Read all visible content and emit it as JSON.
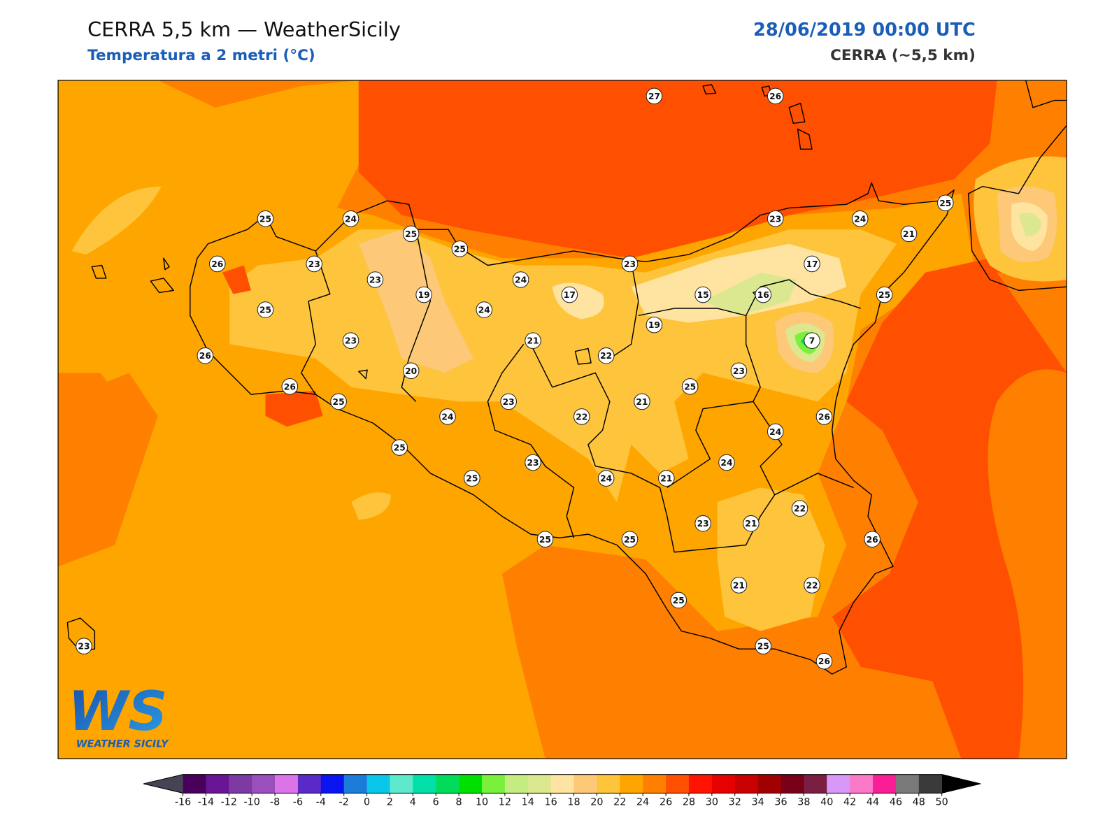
{
  "header": {
    "title": "CERRA 5,5 km — WeatherSicily",
    "subtitle": "Temperatura a 2 metri (°C)",
    "datetime": "28/06/2019 00:00 UTC",
    "model": "CERRA (~5,5 km)"
  },
  "logo": {
    "mark": "WS",
    "name": "WEATHER SICILY"
  },
  "stations": [
    27,
    26,
    25,
    24,
    25,
    25,
    26,
    23,
    23,
    19,
    24,
    24,
    17,
    23,
    15,
    16,
    23,
    24,
    25,
    21,
    17,
    25,
    25,
    23,
    21,
    22,
    19,
    7,
    26,
    26,
    20,
    25,
    24,
    23,
    22,
    21,
    25,
    23,
    26,
    24,
    25,
    23,
    24,
    21,
    24,
    25,
    22,
    23,
    21,
    25,
    25,
    26,
    21,
    22,
    25,
    25,
    26,
    23
  ],
  "colorbar": {
    "ticks": [
      -16,
      -14,
      -12,
      -10,
      -8,
      -6,
      -4,
      -2,
      0,
      2,
      4,
      6,
      8,
      10,
      12,
      14,
      16,
      18,
      20,
      22,
      24,
      26,
      28,
      30,
      32,
      34,
      36,
      38,
      40,
      42,
      44,
      46,
      48,
      50
    ],
    "colors": [
      "#48005a",
      "#6a1694",
      "#7e3aa3",
      "#9b4fbd",
      "#dc74e8",
      "#5a2ac8",
      "#0a14f0",
      "#1a7cd8",
      "#0ac6e8",
      "#5ee8cc",
      "#00e0a8",
      "#00dc5a",
      "#00e000",
      "#78f03c",
      "#c4ec80",
      "#dce890",
      "#fee4a0",
      "#fdc878",
      "#fdc43c",
      "#fea500",
      "#ff8000",
      "#fe5000",
      "#fe1400",
      "#e60000",
      "#c80000",
      "#a00000",
      "#780018",
      "#7a1e42",
      "#d898f8",
      "#fc78c8",
      "#fa1e96",
      "#7a7a7a",
      "#3a3a3a"
    ],
    "under": "#444455",
    "over": "#000000"
  }
}
